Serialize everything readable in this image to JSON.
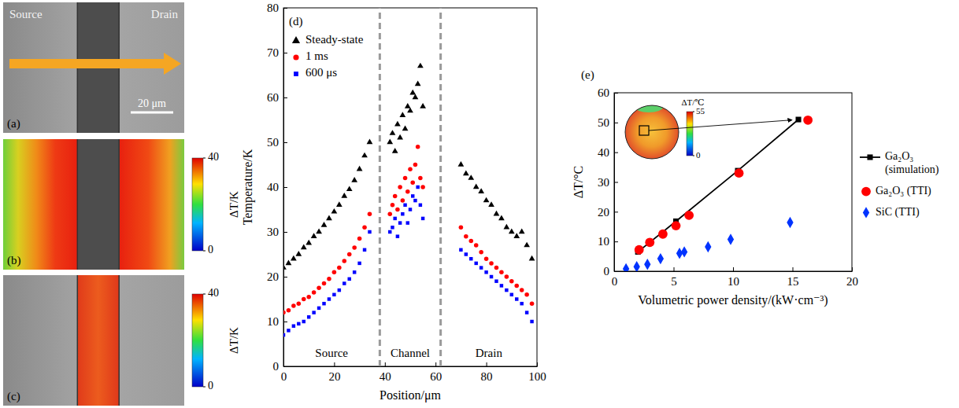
{
  "chart_data": [
    {
      "type": "image",
      "panel_label": "(a)",
      "labels": [
        "Source",
        "Drain"
      ],
      "scale_bar": "20 μm"
    },
    {
      "type": "image",
      "panel_label": "(b)",
      "colorbar_title": "ΔT/K",
      "colorbar_lim": [
        0,
        40
      ],
      "colorbar_ticks": [
        0,
        40
      ]
    },
    {
      "type": "image",
      "panel_label": "(c)",
      "colorbar_title": "ΔT/K",
      "colorbar_lim": [
        0,
        40
      ],
      "colorbar_ticks": [
        0,
        40
      ]
    },
    {
      "type": "scatter",
      "panel_label": "(d)",
      "x_label": "Position/μm",
      "y_label": "Temperature/K",
      "xlim": [
        0,
        100
      ],
      "xticks": [
        0,
        20,
        40,
        60,
        80,
        100
      ],
      "ylim": [
        0,
        80
      ],
      "yticks": [
        0,
        10,
        20,
        30,
        40,
        50,
        60,
        70,
        80
      ],
      "regions": [
        "Source",
        "Channel",
        "Drain"
      ],
      "region_bounds": [
        38,
        62
      ],
      "legend": "upper left",
      "series": [
        {
          "name": "Steady-state",
          "color": "#000000",
          "marker": "triangle",
          "x": [
            0,
            2,
            4,
            6,
            8,
            10,
            12,
            14,
            16,
            18,
            20,
            22,
            24,
            26,
            28,
            30,
            32,
            34,
            42,
            43,
            44,
            45,
            46,
            47,
            48,
            49,
            50,
            51,
            52,
            53,
            54,
            55,
            70,
            72,
            74,
            76,
            78,
            80,
            82,
            84,
            86,
            88,
            90,
            92,
            94,
            96,
            98
          ],
          "values": [
            22,
            23,
            24,
            25,
            26.5,
            27.5,
            29,
            30,
            31.5,
            33,
            34.5,
            36,
            38,
            39.5,
            41.5,
            44,
            47,
            50,
            50,
            52,
            48,
            54,
            51,
            56,
            53,
            58,
            57,
            61,
            60,
            63,
            67,
            58,
            45,
            43,
            42,
            40,
            39,
            37,
            36,
            34,
            33,
            31,
            30,
            29,
            30,
            27,
            24
          ]
        },
        {
          "name": "1 ms",
          "color": "#ff0000",
          "marker": "circle",
          "x": [
            0,
            2,
            4,
            6,
            8,
            10,
            12,
            14,
            16,
            18,
            20,
            22,
            24,
            26,
            28,
            30,
            32,
            34,
            42,
            43,
            44,
            45,
            46,
            47,
            48,
            49,
            50,
            51,
            52,
            53,
            54,
            55,
            70,
            72,
            74,
            76,
            78,
            80,
            82,
            84,
            86,
            88,
            90,
            92,
            94,
            96,
            98
          ],
          "values": [
            12,
            12.5,
            13.5,
            14,
            15,
            15.5,
            16.5,
            17.5,
            18.5,
            19.5,
            21,
            22,
            23.5,
            25,
            26.5,
            28.5,
            31,
            34,
            34,
            36,
            38,
            35,
            40,
            37,
            42,
            39,
            44,
            41,
            45,
            49,
            42,
            40,
            31,
            29,
            28,
            27,
            25.5,
            24,
            23,
            22,
            21,
            20,
            19,
            18,
            17,
            16,
            14
          ]
        },
        {
          "name": "600 μs",
          "color": "#0000ff",
          "marker": "square",
          "x": [
            0,
            2,
            4,
            6,
            8,
            10,
            12,
            14,
            16,
            18,
            20,
            22,
            24,
            26,
            28,
            30,
            32,
            34,
            42,
            43,
            44,
            45,
            46,
            47,
            48,
            49,
            50,
            51,
            52,
            53,
            54,
            55,
            70,
            72,
            74,
            76,
            78,
            80,
            82,
            84,
            86,
            88,
            90,
            92,
            94,
            96,
            98
          ],
          "values": [
            7,
            8,
            9,
            9.5,
            10,
            11,
            12,
            13,
            14,
            15,
            16,
            17,
            18.5,
            19.5,
            21,
            23,
            26,
            30,
            30,
            31,
            33,
            29,
            32,
            34,
            36,
            32,
            35,
            38,
            37,
            40,
            36,
            33,
            26,
            25,
            24,
            23,
            22,
            21,
            20,
            19,
            18,
            17,
            16,
            15,
            14,
            12,
            10
          ]
        }
      ]
    },
    {
      "type": "line",
      "panel_label": "(e)",
      "x_label": "Volumetric power density/(kW·cm⁻³)",
      "y_label": "ΔT/°C",
      "xlim": [
        0,
        20
      ],
      "xticks": [
        0,
        5,
        10,
        15,
        20
      ],
      "ylim": [
        0,
        60
      ],
      "yticks": [
        0,
        10,
        20,
        30,
        40,
        50,
        60
      ],
      "legend": "right",
      "inset": {
        "colorbar_title": "ΔT/℃",
        "colorbar_lim": [
          0,
          55
        ],
        "colorbar_ticks": [
          0,
          55
        ]
      },
      "series": [
        {
          "name": "Ga₂O₃ (simulation)",
          "type": "line",
          "color": "#000000",
          "marker": "square",
          "x": [
            2,
            5.2,
            10.4,
            15.5
          ],
          "values": [
            6.5,
            16.8,
            33.8,
            51
          ]
        },
        {
          "name": "Ga₂O₃ (TTI)",
          "type": "scatter",
          "color": "#ff0000",
          "marker": "circle",
          "x": [
            2.1,
            3,
            4.1,
            5.2,
            6.3,
            10.5,
            16.3
          ],
          "values": [
            7.2,
            9.7,
            12.5,
            15.3,
            18.8,
            33,
            50.8
          ]
        },
        {
          "name": "SiC (TTI)",
          "type": "scatter",
          "color": "#0033ff",
          "marker": "diamond",
          "x": [
            1,
            1.9,
            2.8,
            3.9,
            5.5,
            5.9,
            7.9,
            9.8,
            14.8
          ],
          "values": [
            0.8,
            1.5,
            2.3,
            4.2,
            6,
            6.5,
            8.2,
            10.7,
            16.4
          ]
        }
      ]
    }
  ]
}
